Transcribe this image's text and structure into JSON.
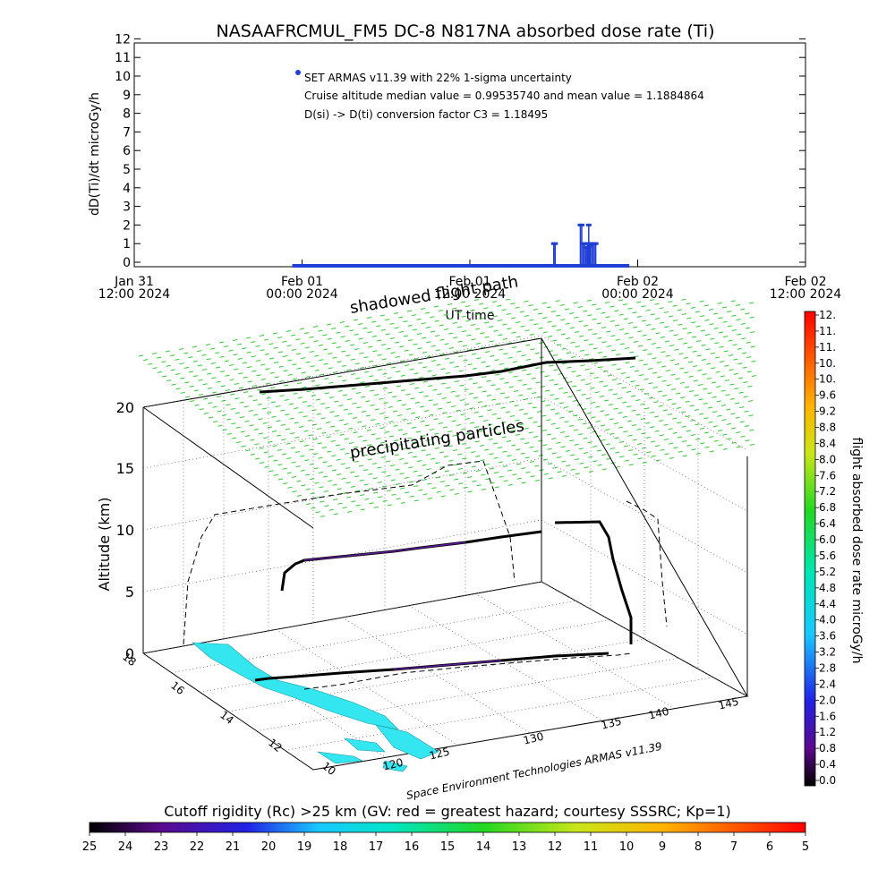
{
  "chart_data": [
    {
      "type": "scatter",
      "title": "NASAAFRCMUL_FM5 DC-8   N817NA absorbed dose rate (Ti)",
      "ylabel": "dD(Ti)/dt microGy/h",
      "xlabel": "UT time",
      "ylim": [
        0,
        12
      ],
      "y_ticks": [
        "0",
        "1",
        "2",
        "3",
        "4",
        "5",
        "6",
        "7",
        "8",
        "9",
        "10",
        "11",
        "12"
      ],
      "x_ticks": [
        {
          "line1": "Jan 31",
          "line2": "12:00 2024"
        },
        {
          "line1": "Feb 01",
          "line2": "00:00 2024"
        },
        {
          "line1": "Feb 01",
          "line2": "12:00 2024"
        },
        {
          "line1": "Feb 02",
          "line2": "00:00 2024"
        },
        {
          "line1": "Feb 02",
          "line2": "12:00 2024"
        }
      ],
      "series_color": "#1f3fd6",
      "baseline": {
        "x_start_h": -0.7,
        "x_end_h": 23.4,
        "value": -0.3
      },
      "points_x_hours": [
        18.0,
        18.1,
        19.9,
        20.0,
        20.1,
        20.2,
        20.3,
        20.4,
        20.5,
        20.45,
        20.55,
        20.6,
        20.7,
        20.8,
        20.9,
        21.0
      ],
      "points_y": [
        1.0,
        1.0,
        2.0,
        2.0,
        1.0,
        1.0,
        0.8,
        1.0,
        2.0,
        1.0,
        1.0,
        0.9,
        1.0,
        1.0,
        1.0,
        1.0
      ],
      "legend_marker_color": "#1f3fd6",
      "annotations": [
        "SET ARMAS v11.39 with 22% 1-sigma uncertainty",
        "Cruise altitude median value = 0.99535740 and mean value = 1.1884864",
        "D(si) -> D(ti) conversion factor C3 = 1.18495"
      ]
    },
    {
      "type": "scatter",
      "subtype": "3d-flight-path",
      "zlabel": "Altitude (km)",
      "z_ticks": [
        "0",
        "5",
        "10",
        "15",
        "20"
      ],
      "lat_ticks": [
        "18",
        "16",
        "14",
        "12",
        "10"
      ],
      "lon_ticks": [
        "120",
        "125",
        "130",
        "135",
        "140",
        "145"
      ],
      "labels": {
        "shadowed_flight_path": "shadowed flight path",
        "precipitating_particles": "precipitating particles",
        "credit": "Space Environment Technologies ARMAS v11.39"
      },
      "colorbar": {
        "label": "flight absorbed dose rate microGy/h",
        "ticks": [
          "12.",
          "11.",
          "11.",
          "10.",
          "10.",
          "9.6",
          "9.2",
          "8.8",
          "8.4",
          "8.0",
          "7.6",
          "7.2",
          "6.8",
          "6.4",
          "6.0",
          "5.6",
          "5.2",
          "4.8",
          "4.4",
          "4.0",
          "3.6",
          "3.2",
          "2.8",
          "2.4",
          "2.0",
          "1.6",
          "1.2",
          "0.8",
          "0.4",
          "0.0"
        ]
      },
      "precip_color": "#33cc33",
      "path_color": "#000000",
      "cutoff_fill": "#33e6f0"
    },
    {
      "type": "heatmap",
      "subtype": "horizontal-colorbar",
      "title": "Cutoff rigidity (Rc) >25 km (GV: red = greatest hazard; courtesy SSSRC; Kp=1)",
      "ticks": [
        "25",
        "24",
        "23",
        "22",
        "21",
        "20",
        "19",
        "18",
        "17",
        "16",
        "15",
        "14",
        "13",
        "12",
        "11",
        "10",
        "9",
        "8",
        "7",
        "6",
        "5"
      ]
    }
  ]
}
